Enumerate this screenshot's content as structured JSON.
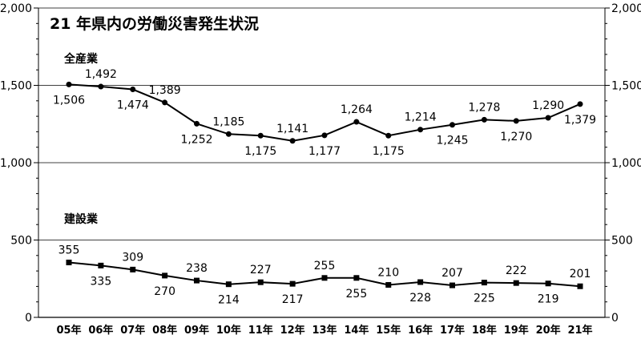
{
  "chart_data": {
    "type": "line",
    "title": "21 年県内の労働災害発生状況",
    "categories": [
      "05年",
      "06年",
      "07年",
      "08年",
      "09年",
      "10年",
      "11年",
      "12年",
      "13年",
      "14年",
      "15年",
      "16年",
      "17年",
      "18年",
      "19年",
      "20年",
      "21年"
    ],
    "ylim": [
      0,
      2000
    ],
    "y_ticks": [
      "0",
      "500",
      "1,000",
      "1,500",
      "2,000"
    ],
    "y_tick_values": [
      0,
      500,
      1000,
      1500,
      2000
    ],
    "grid": "horizontal",
    "series": [
      {
        "name": "全産業",
        "marker": "circle",
        "values": [
          1506,
          1492,
          1474,
          1389,
          1252,
          1185,
          1175,
          1141,
          1177,
          1264,
          1175,
          1214,
          1245,
          1278,
          1270,
          1290,
          1379
        ],
        "labels": [
          "1,506",
          "1,492",
          "1,474",
          "1,389",
          "1,252",
          "1,185",
          "1,175",
          "1,141",
          "1,177",
          "1,264",
          "1,175",
          "1,214",
          "1,245",
          "1,278",
          "1,270",
          "1,290",
          "1,379"
        ]
      },
      {
        "name": "建設業",
        "marker": "square",
        "values": [
          355,
          335,
          309,
          270,
          238,
          214,
          227,
          217,
          255,
          255,
          210,
          228,
          207,
          225,
          222,
          219,
          201
        ],
        "labels": [
          "355",
          "335",
          "309",
          "270",
          "238",
          "214",
          "227",
          "217",
          "255",
          "255",
          "210",
          "228",
          "207",
          "225",
          "222",
          "219",
          "201"
        ]
      }
    ]
  }
}
